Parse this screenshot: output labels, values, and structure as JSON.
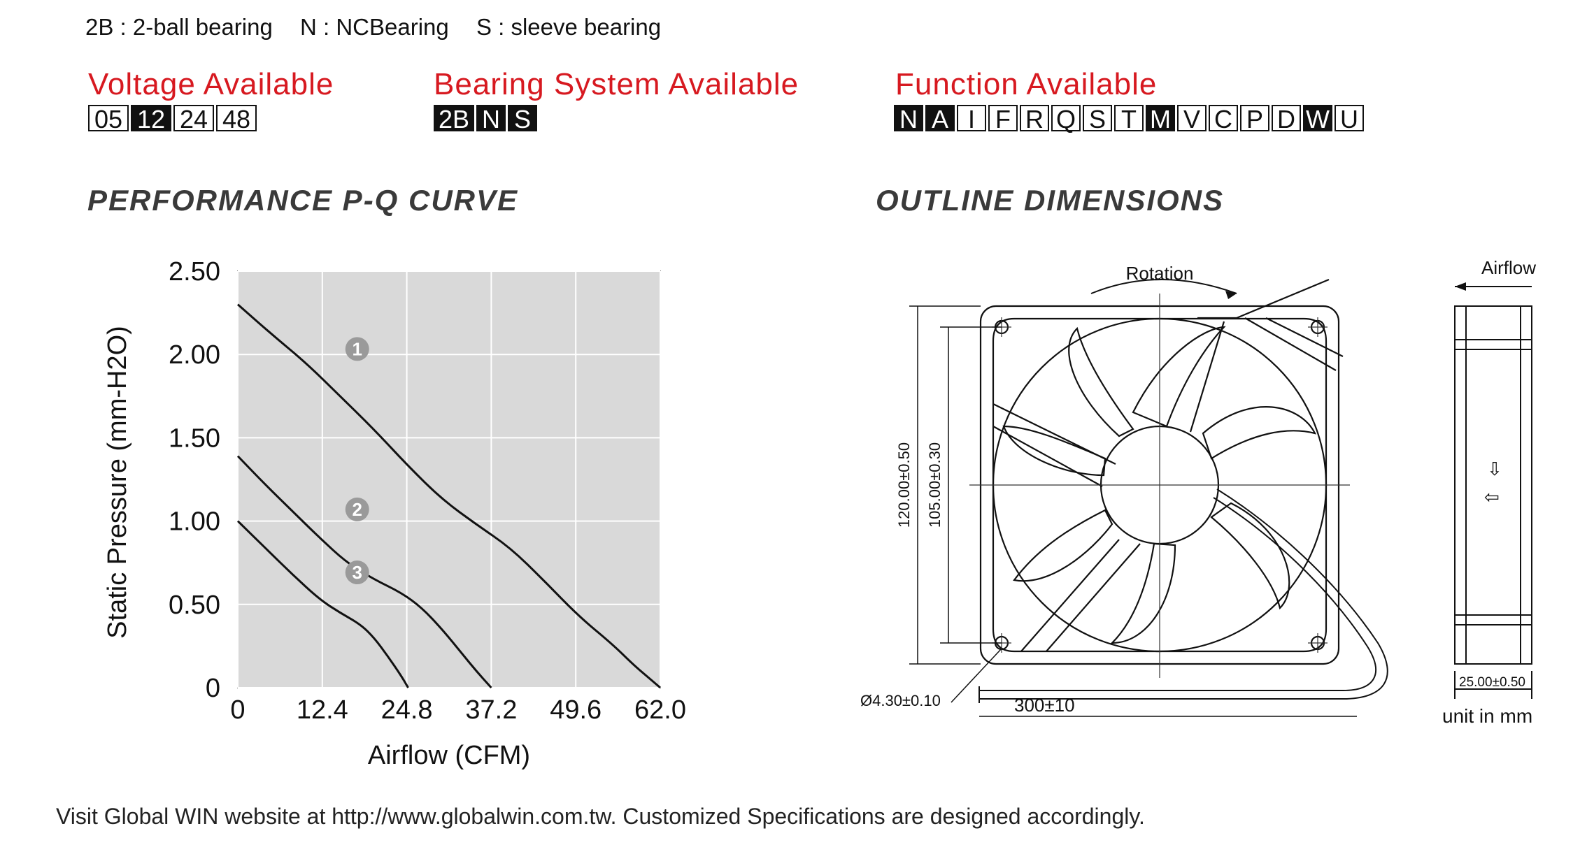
{
  "bearing_legend": [
    {
      "code": "2B",
      "text": "2B : 2-ball bearing"
    },
    {
      "code": "N",
      "text": "N : NCBearing"
    },
    {
      "code": "S",
      "text": "S : sleeve bearing"
    }
  ],
  "voltage": {
    "title": "Voltage Available",
    "options": [
      {
        "label": "05",
        "selected": false
      },
      {
        "label": "12",
        "selected": true
      },
      {
        "label": "24",
        "selected": false
      },
      {
        "label": "48",
        "selected": false
      }
    ]
  },
  "bearing": {
    "title": "Bearing System Available",
    "options": [
      {
        "label": "2B",
        "selected": true
      },
      {
        "label": "N",
        "selected": true
      },
      {
        "label": "S",
        "selected": true
      }
    ]
  },
  "function": {
    "title": "Function Available",
    "options": [
      {
        "label": "N",
        "selected": true
      },
      {
        "label": "A",
        "selected": true
      },
      {
        "label": "I",
        "selected": false
      },
      {
        "label": "F",
        "selected": false
      },
      {
        "label": "R",
        "selected": false
      },
      {
        "label": "Q",
        "selected": false
      },
      {
        "label": "S",
        "selected": false
      },
      {
        "label": "T",
        "selected": false
      },
      {
        "label": "M",
        "selected": true
      },
      {
        "label": "V",
        "selected": false
      },
      {
        "label": "C",
        "selected": false
      },
      {
        "label": "P",
        "selected": false
      },
      {
        "label": "D",
        "selected": false
      },
      {
        "label": "W",
        "selected": true
      },
      {
        "label": "U",
        "selected": false
      }
    ]
  },
  "pq_section_title": "PERFORMANCE P-Q CURVE",
  "outline_section_title": "OUTLINE DIMENSIONS",
  "chart_data": {
    "type": "line",
    "xlabel": "Airflow (CFM)",
    "ylabel": "Static Pressure (mm-H2O)",
    "xlim": [
      0,
      62.0
    ],
    "ylim": [
      0,
      2.5
    ],
    "x_ticks": [
      "0",
      "12.4",
      "24.8",
      "37.2",
      "49.6",
      "62.0"
    ],
    "y_ticks": [
      "2.50",
      "2.00",
      "1.50",
      "1.00",
      "0.50",
      "0"
    ],
    "grid": true,
    "series": [
      {
        "name": "1",
        "points": [
          [
            0,
            2.3
          ],
          [
            5,
            2.12
          ],
          [
            10,
            1.95
          ],
          [
            15,
            1.75
          ],
          [
            20,
            1.55
          ],
          [
            25,
            1.33
          ],
          [
            30,
            1.13
          ],
          [
            35,
            0.98
          ],
          [
            40,
            0.84
          ],
          [
            45,
            0.64
          ],
          [
            50,
            0.43
          ],
          [
            55,
            0.26
          ],
          [
            58,
            0.14
          ],
          [
            60,
            0.07
          ],
          [
            62,
            0
          ]
        ]
      },
      {
        "name": "2",
        "points": [
          [
            0,
            1.39
          ],
          [
            4,
            1.22
          ],
          [
            8,
            1.06
          ],
          [
            12,
            0.9
          ],
          [
            16,
            0.75
          ],
          [
            20,
            0.65
          ],
          [
            24,
            0.57
          ],
          [
            27,
            0.48
          ],
          [
            30,
            0.35
          ],
          [
            33,
            0.2
          ],
          [
            35,
            0.1
          ],
          [
            37.2,
            0
          ]
        ]
      },
      {
        "name": "3",
        "points": [
          [
            0,
            1.0
          ],
          [
            4,
            0.84
          ],
          [
            8,
            0.68
          ],
          [
            12,
            0.53
          ],
          [
            15,
            0.45
          ],
          [
            18,
            0.38
          ],
          [
            20,
            0.3
          ],
          [
            22,
            0.19
          ],
          [
            24,
            0.07
          ],
          [
            25,
            0
          ]
        ]
      }
    ]
  },
  "outline": {
    "rotation_label": "Rotation",
    "airflow_label": "Airflow",
    "dim_outer": "120.00±0.50",
    "dim_inner": "105.00±0.30",
    "dim_hole": "Ø4.30±0.10",
    "dim_lead": "300±10",
    "dim_depth": "25.00±0.50",
    "unit": "unit in mm"
  },
  "footer": "Visit Global WIN website at http://www.globalwin.com.tw. Customized Specifications are designed accordingly."
}
